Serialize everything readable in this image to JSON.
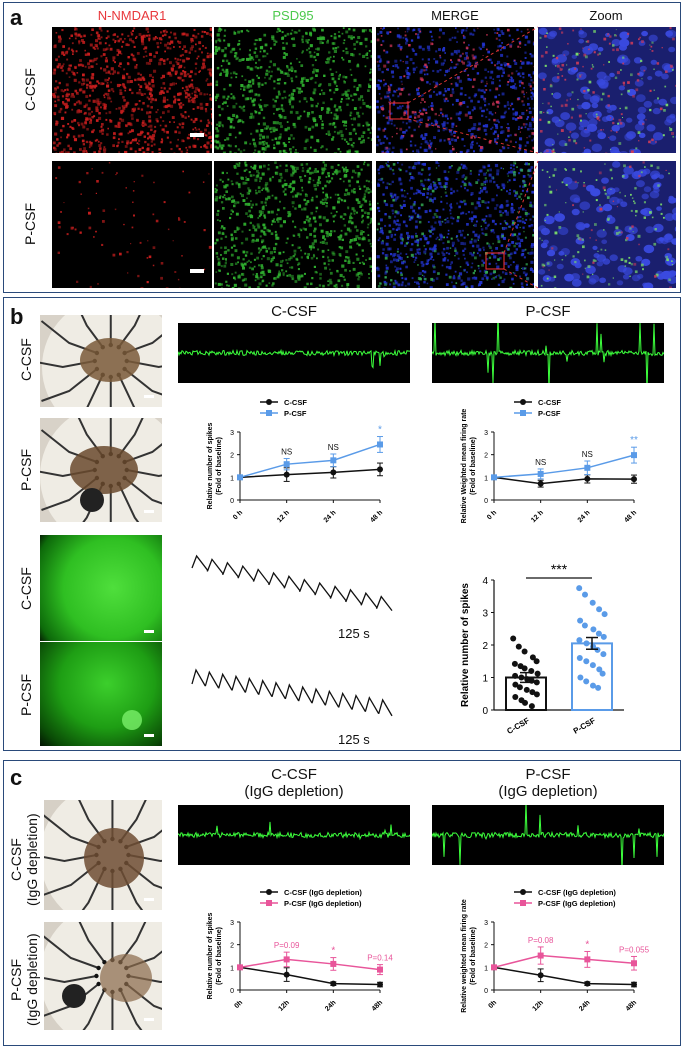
{
  "panel_a": {
    "label": "a",
    "columns": [
      "N-NMDAR1",
      "PSD95",
      "MERGE",
      "Zoom"
    ],
    "column_colors": [
      "#e8383c",
      "#4cc94c",
      "#222222",
      "#222222"
    ],
    "rows": [
      "C-CSF",
      "P-CSF"
    ]
  },
  "panel_b": {
    "label": "b",
    "rows_top": [
      "C-CSF",
      "P-CSF"
    ],
    "rows_bottom": [
      "C-CSF",
      "P-CSF"
    ],
    "trace_titles": [
      "C-CSF",
      "P-CSF"
    ],
    "calcium_scale": [
      "125 s",
      "125 s"
    ]
  },
  "panel_c": {
    "label": "c",
    "rows": [
      "C-CSF\n(IgG depletion)",
      "P-CSF\n(IgG depletion)"
    ],
    "row_lines": [
      [
        "C-CSF",
        "(IgG depletion)"
      ],
      [
        "P-CSF",
        "(IgG depletion)"
      ]
    ],
    "trace_titles": [
      [
        "C-CSF",
        "(IgG depletion)"
      ],
      [
        "P-CSF",
        "(IgG depletion)"
      ]
    ]
  },
  "chart_data": [
    {
      "id": "b-spikes",
      "type": "line",
      "categories": [
        "0 h",
        "12 h",
        "24 h",
        "48 h"
      ],
      "ylabel": "Relative number of spikes\n(Fold of baseline)",
      "ylabel_lines": [
        "Relative number of spikes",
        "(Fold of baseline)"
      ],
      "ylim": [
        0,
        3
      ],
      "yticks": [
        "0",
        "1",
        "2",
        "3"
      ],
      "legend": "top-left",
      "series": [
        {
          "name": "C-CSF",
          "values": [
            1.0,
            1.12,
            1.22,
            1.35
          ],
          "err": [
            0,
            0.3,
            0.25,
            0.28
          ],
          "color": "#111111"
        },
        {
          "name": "P-CSF",
          "values": [
            1.0,
            1.58,
            1.75,
            2.45
          ],
          "err": [
            0,
            0.25,
            0.28,
            0.35
          ],
          "color": "#5a9be8"
        }
      ],
      "annotations": [
        "NS",
        "NS",
        "*"
      ]
    },
    {
      "id": "b-firing",
      "type": "line",
      "categories": [
        "0 h",
        "12 h",
        "24 h",
        "48 h"
      ],
      "ylabel_lines": [
        "Relative Weighted mean firing rate",
        "(Fold of baseline)"
      ],
      "ylim": [
        0,
        3
      ],
      "yticks": [
        "0",
        "1",
        "2",
        "3"
      ],
      "legend": "top-left",
      "series": [
        {
          "name": "C-CSF",
          "values": [
            1.0,
            0.72,
            0.93,
            0.92
          ],
          "err": [
            0,
            0.15,
            0.18,
            0.18
          ],
          "color": "#111111"
        },
        {
          "name": "P-CSF",
          "values": [
            1.0,
            1.15,
            1.42,
            1.98
          ],
          "err": [
            0,
            0.22,
            0.3,
            0.35
          ],
          "color": "#5a9be8"
        }
      ],
      "annotations": [
        "NS",
        "NS",
        "**"
      ]
    },
    {
      "id": "b-bar",
      "type": "bar",
      "categories": [
        "C-CSF",
        "P-CSF"
      ],
      "values": [
        1.0,
        2.05
      ],
      "err": [
        0.15,
        0.18
      ],
      "colors": [
        "#111111",
        "#5a9be8"
      ],
      "ylabel": "Relative number of spikes",
      "ylim": [
        0,
        4
      ],
      "yticks": [
        "0",
        "1",
        "2",
        "3",
        "4"
      ],
      "significance": "***",
      "points": [
        [
          2.2,
          1.95,
          1.8,
          1.62,
          1.5,
          1.42,
          1.35,
          1.28,
          1.2,
          1.12,
          1.05,
          1.0,
          0.95,
          0.9,
          0.85,
          0.78,
          0.7,
          0.62,
          0.55,
          0.48,
          0.4,
          0.3,
          0.22,
          0.12
        ],
        [
          3.75,
          3.55,
          3.3,
          3.1,
          2.95,
          2.75,
          2.6,
          2.48,
          2.35,
          2.25,
          2.15,
          2.05,
          1.95,
          1.85,
          1.72,
          1.6,
          1.5,
          1.38,
          1.25,
          1.12,
          1.0,
          0.88,
          0.75,
          0.68
        ]
      ]
    },
    {
      "id": "c-spikes",
      "type": "line",
      "categories": [
        "0h",
        "12h",
        "24h",
        "48h"
      ],
      "ylabel_lines": [
        "Relative number of spikes",
        "(Fold of baseline)"
      ],
      "ylim": [
        0,
        3
      ],
      "yticks": [
        "0",
        "1",
        "2",
        "3"
      ],
      "legend": "top-left",
      "series": [
        {
          "name": "C-CSF (IgG depletion)",
          "values": [
            1.0,
            0.68,
            0.28,
            0.24
          ],
          "err": [
            0,
            0.3,
            0.08,
            0.1
          ],
          "color": "#111111"
        },
        {
          "name": "P-CSF (IgG depletion)",
          "values": [
            1.0,
            1.35,
            1.15,
            0.9
          ],
          "err": [
            0,
            0.32,
            0.28,
            0.22
          ],
          "color": "#e8559a"
        }
      ],
      "annotations": [
        "P=0.09",
        "*",
        "P=0.14"
      ]
    },
    {
      "id": "c-firing",
      "type": "line",
      "categories": [
        "0h",
        "12h",
        "24h",
        "48h"
      ],
      "ylabel_lines": [
        "Relative weighted mean firing rate",
        "(Fold of baseline)"
      ],
      "ylim": [
        0,
        3
      ],
      "yticks": [
        "0",
        "1",
        "2",
        "3"
      ],
      "legend": "top-left",
      "series": [
        {
          "name": "C-CSF (IgG depletion)",
          "values": [
            1.0,
            0.65,
            0.28,
            0.24
          ],
          "err": [
            0,
            0.28,
            0.08,
            0.1
          ],
          "color": "#111111"
        },
        {
          "name": "P-CSF (IgG depletion)",
          "values": [
            1.0,
            1.52,
            1.35,
            1.18
          ],
          "err": [
            0,
            0.38,
            0.35,
            0.3
          ],
          "color": "#e8559a"
        }
      ],
      "annotations": [
        "P=0.08",
        "*",
        "P=0.055"
      ]
    }
  ]
}
